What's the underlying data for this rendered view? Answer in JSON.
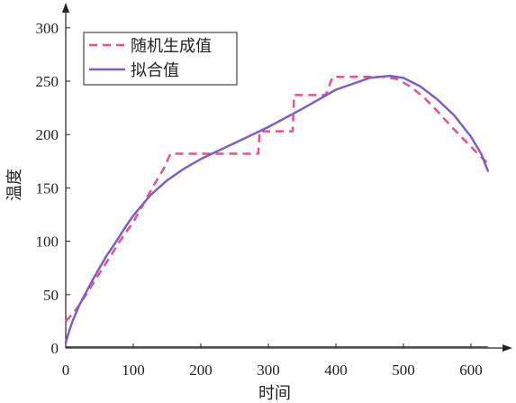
{
  "chart_data": {
    "type": "line",
    "xlabel": "时间",
    "ylabel": "温度",
    "xlim": [
      0,
      660
    ],
    "ylim": [
      0,
      320
    ],
    "xticks": [
      0,
      100,
      200,
      300,
      400,
      500,
      600
    ],
    "yticks": [
      0,
      50,
      100,
      150,
      200,
      250,
      300
    ],
    "grid": false,
    "legend": "top-left",
    "series": [
      {
        "name": "随机生成值",
        "style": "dashed",
        "color": "#ee4f86",
        "x": [
          0,
          10,
          20,
          35,
          50,
          65,
          80,
          100,
          115,
          130,
          145,
          155,
          285,
          287,
          336,
          338,
          385,
          395,
          470,
          490,
          510,
          530,
          550,
          570,
          590,
          610,
          625
        ],
        "y": [
          25,
          32,
          40,
          55,
          70,
          85,
          100,
          118,
          135,
          152,
          168,
          182,
          182,
          203,
          203,
          237,
          237,
          254,
          254,
          252,
          245,
          235,
          222,
          208,
          195,
          182,
          173
        ]
      },
      {
        "name": "拟合值",
        "style": "solid",
        "color": "#7b5fc9",
        "x": [
          0,
          5,
          10,
          20,
          30,
          40,
          50,
          60,
          75,
          90,
          100,
          125,
          150,
          175,
          200,
          250,
          300,
          350,
          400,
          450,
          480,
          500,
          525,
          550,
          575,
          600,
          615,
          625
        ],
        "y": [
          5,
          16,
          25,
          40,
          52,
          64,
          75,
          86,
          100,
          115,
          124,
          143,
          157,
          168,
          177,
          192,
          207,
          224,
          242,
          253,
          255,
          253,
          245,
          233,
          218,
          198,
          182,
          166
        ]
      }
    ]
  }
}
